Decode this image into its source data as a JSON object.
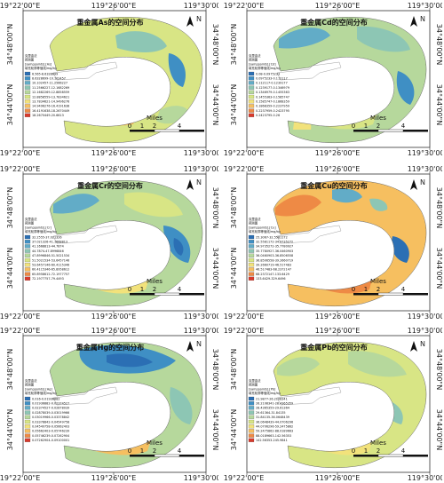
{
  "coords": {
    "lon_left": "119°22'00\"E",
    "lon_mid": "119°26'00\"E",
    "lon_right": "119°30'00\"E",
    "lat_top": "34°48'00\"N",
    "lat_bottom": "34°44'00\"N"
  },
  "north": "N",
  "scale": {
    "ticks": [
      "0",
      "1",
      "2",
      "4"
    ],
    "unit": "Miles"
  },
  "panels": [
    {
      "title": "重金属As的空间分布",
      "legend_title": "克里金法",
      "legend_sub": "预测图",
      "legend_field": "[samppoints].[As]",
      "legend_unit": "填充轮廓等值线/mg/kg",
      "classes": [
        {
          "label": "6.565-8.6328699",
          "color": "#2b6fb4"
        },
        {
          "label": "8.6328699-10.102457",
          "color": "#3f8fc4"
        },
        {
          "label": "10.102457-11.2566227",
          "color": "#62acc7"
        },
        {
          "label": "11.2566227-12.1682269",
          "color": "#8dc6b4"
        },
        {
          "label": "12.1682269-12.8858559",
          "color": "#b6d89c"
        },
        {
          "label": "12.8858559-13.7834621",
          "color": "#d8e585"
        },
        {
          "label": "13.7834621-14.9496276",
          "color": "#f2e27b"
        },
        {
          "label": "14.9496276-16.4191638",
          "color": "#f6bf60"
        },
        {
          "label": "16.4191638-18.2670449",
          "color": "#ee8a45"
        },
        {
          "label": "18.2670449-20.6613",
          "color": "#d83a2c"
        }
      ]
    },
    {
      "title": "重金属Cd的空间分布",
      "legend_title": "克里金法",
      "legend_sub": "预测图",
      "legend_field": "[samppoints].[Cd]",
      "legend_unit": "填充轮廓等值线/mg/kg",
      "classes": [
        {
          "label": "0.08-0.0975233",
          "color": "#2b6fb4"
        },
        {
          "label": "0.0975233-0.112117",
          "color": "#3f8fc4"
        },
        {
          "label": "0.112117-0.1239177",
          "color": "#62acc7"
        },
        {
          "label": "0.1239177-0.1346979",
          "color": "#8dc6b4"
        },
        {
          "label": "0.1346979-0.1455363",
          "color": "#b6d89c"
        },
        {
          "label": "0.1455363-0.1585747",
          "color": "#d8e585"
        },
        {
          "label": "0.1585747-0.1868359",
          "color": "#f2e27b"
        },
        {
          "label": "0.1868359-0.2237959",
          "color": "#f6bf60"
        },
        {
          "label": "0.2237959-0.2423795",
          "color": "#ee8a45"
        },
        {
          "label": "0.2423795-0.26",
          "color": "#d83a2c"
        }
      ]
    },
    {
      "title": "重金属Cr的空间分布",
      "legend_title": "克里金法",
      "legend_sub": "预测图",
      "legend_field": "[samppoints].[Cr]",
      "legend_unit": "填充轮廓等值线/mg/kg",
      "classes": [
        {
          "label": "32.2555-37.021326",
          "color": "#2b6fb4"
        },
        {
          "label": "37.021326-41.1668813",
          "color": "#3f8fc4"
        },
        {
          "label": "41.1668813-44.7874",
          "color": "#62acc7"
        },
        {
          "label": "44.7874-47.8996846",
          "color": "#8dc6b4"
        },
        {
          "label": "47.8996846-51.5021534",
          "color": "#b6d89c"
        },
        {
          "label": "51.5021534-53.6457146",
          "color": "#d8e585"
        },
        {
          "label": "53.6457146-60.4115346",
          "color": "#f2e27b"
        },
        {
          "label": "60.4115346-65.8958612",
          "color": "#f6bf60"
        },
        {
          "label": "65.8958612-72.1977757",
          "color": "#ee8a45"
        },
        {
          "label": "72.1977757-79.4493",
          "color": "#d83a2c"
        }
      ]
    },
    {
      "title": "重金属Cu的空间分布",
      "legend_title": "克里金法",
      "legend_sub": "预测图",
      "legend_field": "[samppoints].[Cu]",
      "legend_unit": "填充轮廓等值线/mg/kg",
      "classes": [
        {
          "label": "25.3067-32.5581172",
          "color": "#2b6fb4"
        },
        {
          "label": "32.5581172-34.9735272",
          "color": "#3f8fc4"
        },
        {
          "label": "34.9735272-35.7780927",
          "color": "#62acc7"
        },
        {
          "label": "35.7780927-36.0460903",
          "color": "#8dc6b4"
        },
        {
          "label": "36.0460903-36.8506558",
          "color": "#b6d89c"
        },
        {
          "label": "36.8506558-39.2660719",
          "color": "#d8e585"
        },
        {
          "label": "39.2660719-46.517483",
          "color": "#f2e27b"
        },
        {
          "label": "46.517483-68.2372147",
          "color": "#f6bf60"
        },
        {
          "label": "68.2372147-133.6429",
          "color": "#ee8a45"
        },
        {
          "label": "133.6429-329.6496",
          "color": "#d83a2c"
        }
      ]
    },
    {
      "title": "重金属Hg的空间分布",
      "legend_title": "克里金法",
      "legend_sub": "预测图",
      "legend_field": "[samppoints].[Hg]",
      "legend_unit": "填充轮廓等值线/mg/kg",
      "classes": [
        {
          "label": "0.016-0.01936882",
          "color": "#2b6fb4"
        },
        {
          "label": "0.01936882-0.02374527",
          "color": "#3f8fc4"
        },
        {
          "label": "0.02374527-0.02878039",
          "color": "#62acc7"
        },
        {
          "label": "0.02878039-0.03019966",
          "color": "#8dc6b4"
        },
        {
          "label": "0.03019966-0.03378842",
          "color": "#b6d89c"
        },
        {
          "label": "0.03378842-0.04549758",
          "color": "#d8e585"
        },
        {
          "label": "0.04549758-0.05662403",
          "color": "#f2e27b"
        },
        {
          "label": "0.05662403-0.05746239",
          "color": "#f6bf60"
        },
        {
          "label": "0.05746239-0.07262904",
          "color": "#ee8a45"
        },
        {
          "label": "0.07262904-0.09100001",
          "color": "#d83a2c"
        }
      ]
    },
    {
      "title": "重金属Pb的空间分布",
      "legend_title": "克里金法",
      "legend_sub": "预测图",
      "legend_field": "[samppoints].[Pb]",
      "legend_unit": "填充轮廓等值线/mg/kg",
      "classes": [
        {
          "label": "21.9877-26.2108341",
          "color": "#2b6fb4"
        },
        {
          "label": "26.2108341-28.4365359",
          "color": "#3f8fc4"
        },
        {
          "label": "28.4365359-29.61364",
          "color": "#62acc7"
        },
        {
          "label": "29.61364-31.84135",
          "color": "#8dc6b4"
        },
        {
          "label": "31.84135-36.0648439",
          "color": "#b6d89c"
        },
        {
          "label": "36.0648439-44.0706296",
          "color": "#d8e585"
        },
        {
          "label": "44.0706296-59.2475862",
          "color": "#f2e27b"
        },
        {
          "label": "59.2475862-88.0189663",
          "color": "#f6bf60"
        },
        {
          "label": "88.0189663-142.56353",
          "color": "#ee8a45"
        },
        {
          "label": "142.56353-245.9841",
          "color": "#d83a2c"
        }
      ]
    }
  ]
}
